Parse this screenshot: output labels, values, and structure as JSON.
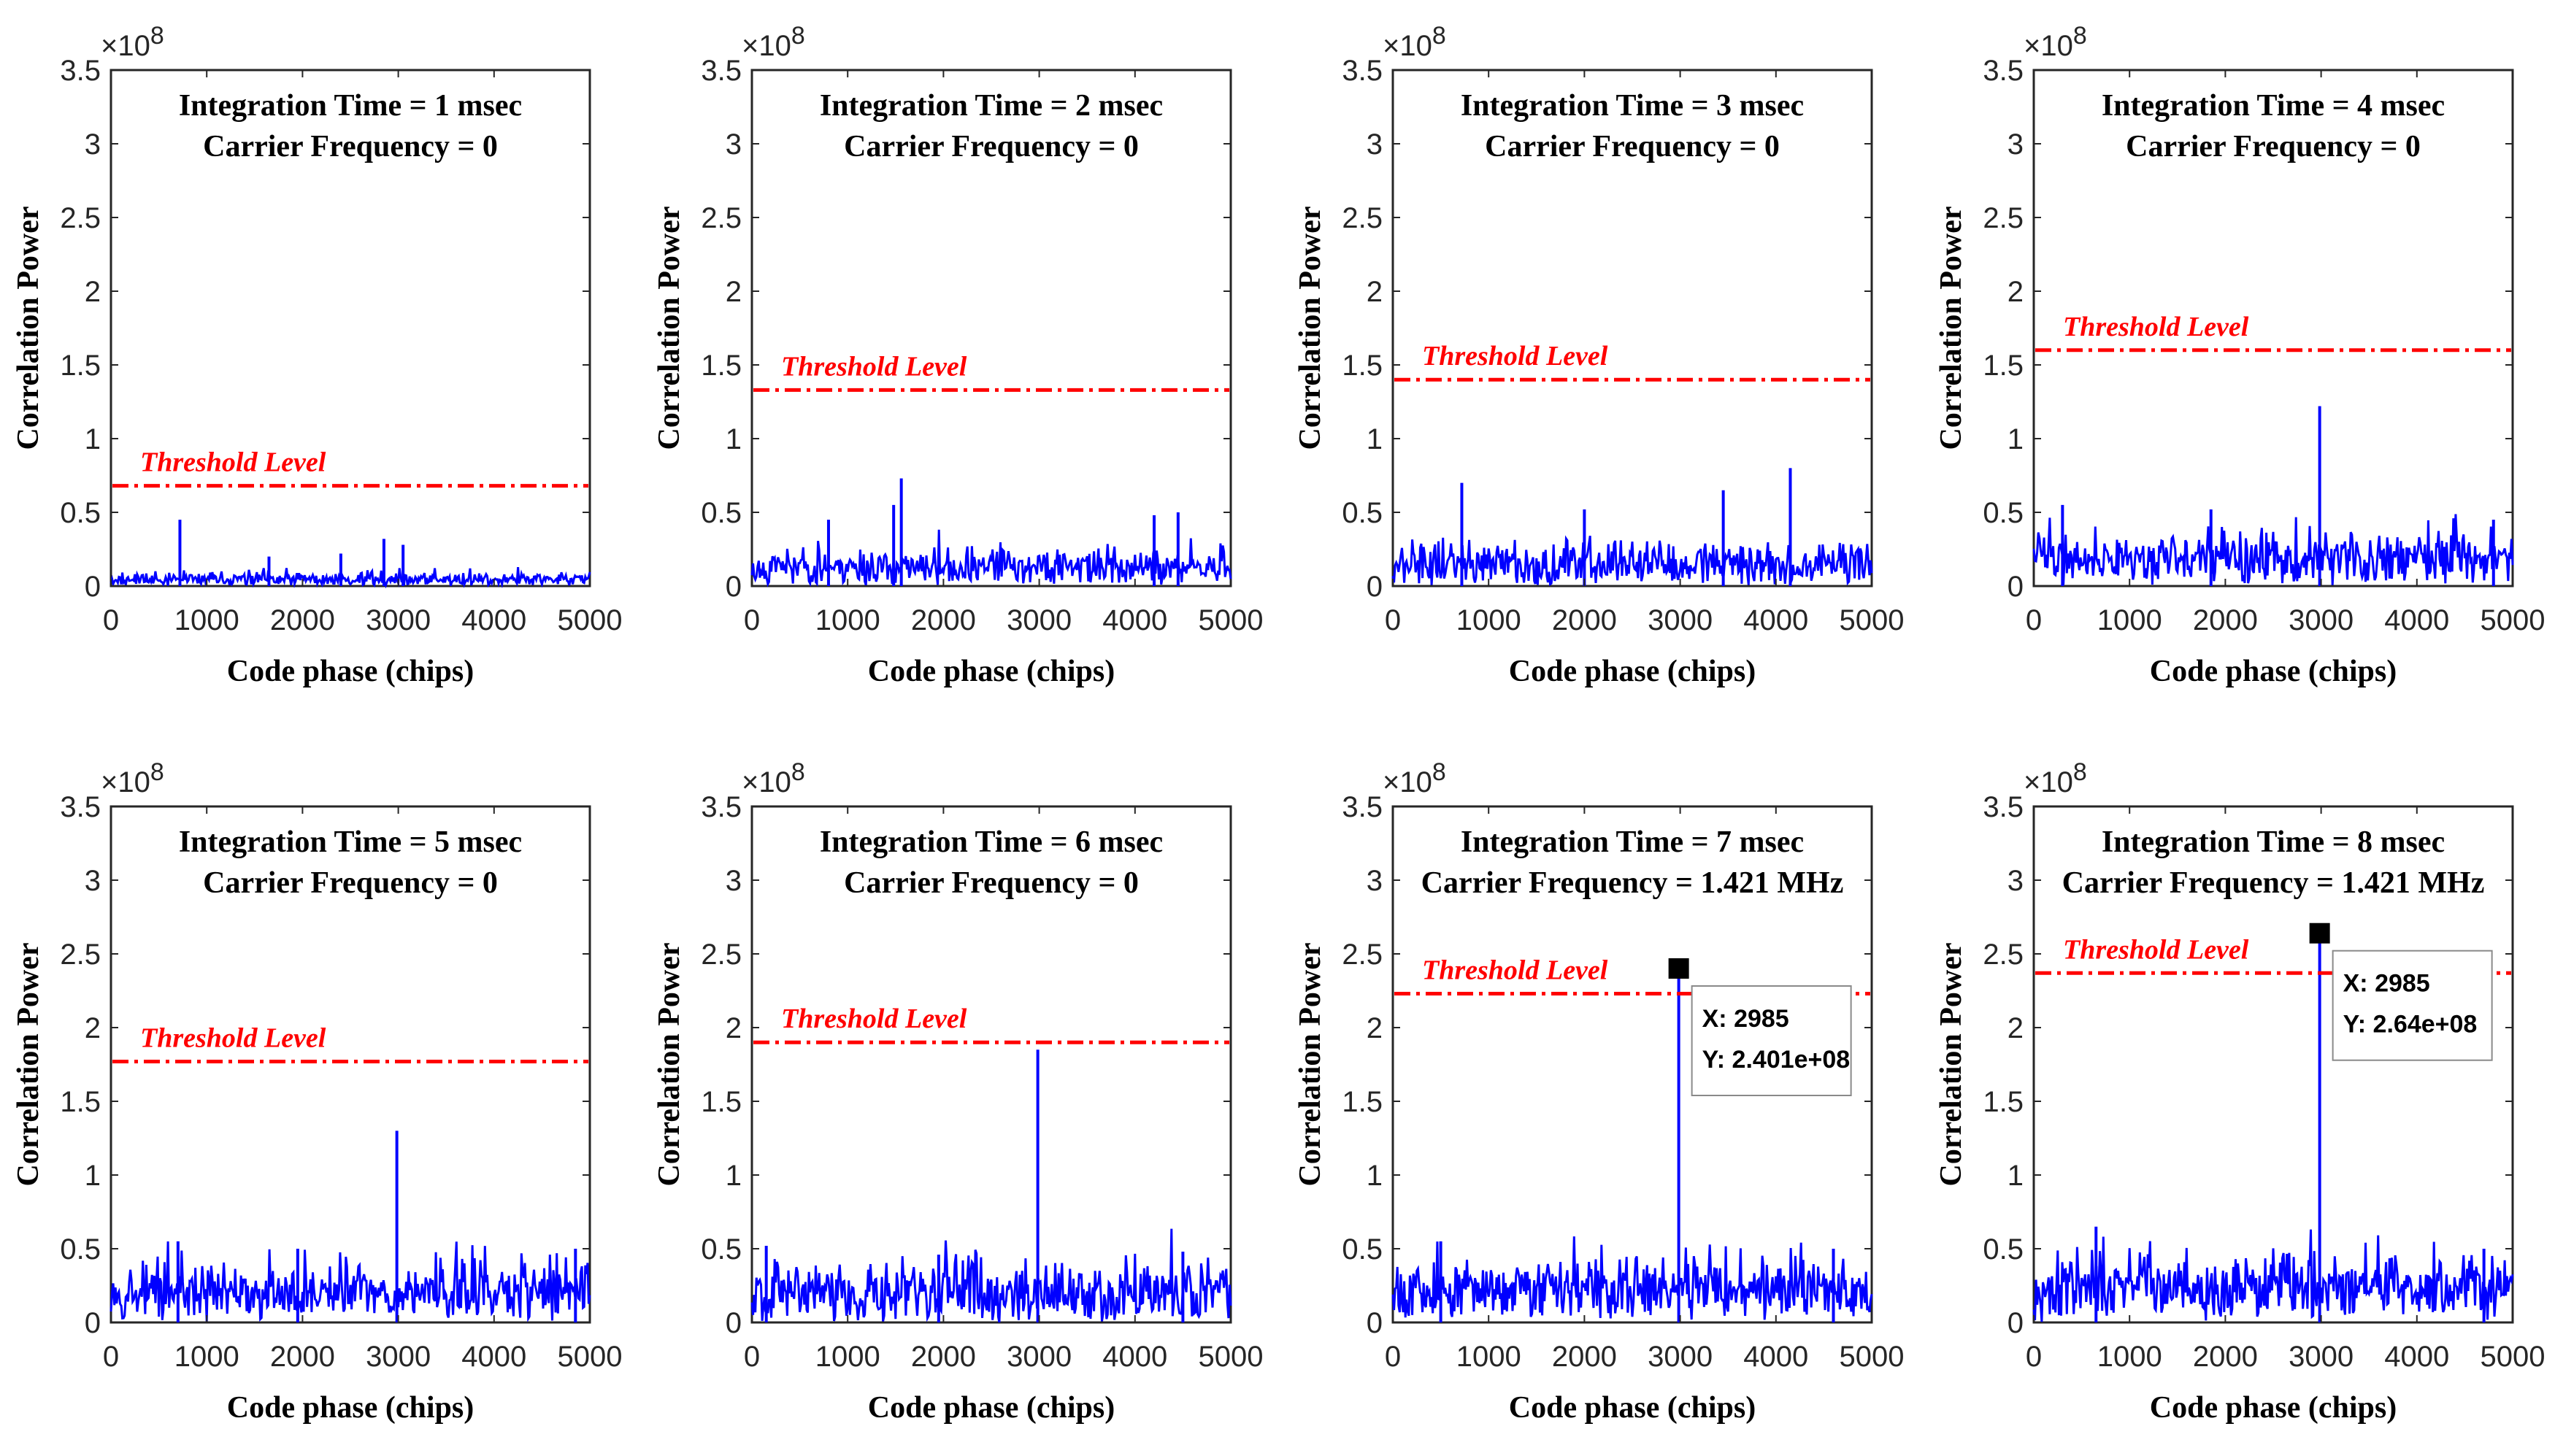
{
  "figure": {
    "description_free": true,
    "colors": {
      "signal": "#0000ff",
      "threshold": "#ff0000",
      "axes": "#262626",
      "marker": "#000000"
    }
  },
  "chart_data": [
    {
      "type": "line",
      "title_line1": "Integration Time = 1 msec",
      "title_line2": "Carrier Frequency = 0",
      "xlabel": "Code phase (chips)",
      "ylabel": "Correlation Power",
      "exponent_label": "×10",
      "exponent_power": "8",
      "xlim": [
        0,
        5000
      ],
      "ylim": [
        0,
        3.5
      ],
      "xticks": [
        "0",
        "1000",
        "2000",
        "3000",
        "4000",
        "5000"
      ],
      "yticks": [
        "0",
        "0.5",
        "1",
        "1.5",
        "2",
        "2.5",
        "3",
        "3.5"
      ],
      "threshold_label": "Threshold Level",
      "threshold": 0.68,
      "noise_level": 0.06,
      "peaks": [
        {
          "x": 720,
          "y": 0.45
        },
        {
          "x": 2850,
          "y": 0.32
        },
        {
          "x": 3050,
          "y": 0.28
        },
        {
          "x": 1650,
          "y": 0.2
        },
        {
          "x": 2400,
          "y": 0.22
        }
      ],
      "seed": 11
    },
    {
      "type": "line",
      "title_line1": "Integration Time = 2 msec",
      "title_line2": "Carrier Frequency = 0",
      "xlabel": "Code phase (chips)",
      "ylabel": "Correlation Power",
      "exponent_label": "×10",
      "exponent_power": "8",
      "xlim": [
        0,
        5000
      ],
      "ylim": [
        0,
        3.5
      ],
      "xticks": [
        "0",
        "1000",
        "2000",
        "3000",
        "4000",
        "5000"
      ],
      "yticks": [
        "0",
        "0.5",
        "1",
        "1.5",
        "2",
        "2.5",
        "3",
        "3.5"
      ],
      "threshold_label": "Threshold Level",
      "threshold": 1.33,
      "noise_level": 0.17,
      "peaks": [
        {
          "x": 1560,
          "y": 0.73
        },
        {
          "x": 1480,
          "y": 0.55
        },
        {
          "x": 4450,
          "y": 0.5
        },
        {
          "x": 4200,
          "y": 0.48
        },
        {
          "x": 800,
          "y": 0.45
        }
      ],
      "seed": 23
    },
    {
      "type": "line",
      "title_line1": "Integration Time = 3 msec",
      "title_line2": "Carrier Frequency = 0",
      "xlabel": "Code phase (chips)",
      "ylabel": "Correlation Power",
      "exponent_label": "×10",
      "exponent_power": "8",
      "xlim": [
        0,
        5000
      ],
      "ylim": [
        0,
        3.5
      ],
      "xticks": [
        "0",
        "1000",
        "2000",
        "3000",
        "4000",
        "5000"
      ],
      "yticks": [
        "0",
        "0.5",
        "1",
        "1.5",
        "2",
        "2.5",
        "3",
        "3.5"
      ],
      "threshold_label": "Threshold Level",
      "threshold": 1.4,
      "noise_level": 0.2,
      "peaks": [
        {
          "x": 720,
          "y": 0.7
        },
        {
          "x": 4150,
          "y": 0.8
        },
        {
          "x": 3450,
          "y": 0.65
        },
        {
          "x": 2000,
          "y": 0.52
        }
      ],
      "seed": 37
    },
    {
      "type": "line",
      "title_line1": "Integration Time = 4 msec",
      "title_line2": "Carrier Frequency = 0",
      "xlabel": "Code phase (chips)",
      "ylabel": "Correlation Power",
      "exponent_label": "×10",
      "exponent_power": "8",
      "xlim": [
        0,
        5000
      ],
      "ylim": [
        0,
        3.5
      ],
      "xticks": [
        "0",
        "1000",
        "2000",
        "3000",
        "4000",
        "5000"
      ],
      "yticks": [
        "0",
        "0.5",
        "1",
        "1.5",
        "2",
        "2.5",
        "3",
        "3.5"
      ],
      "threshold_label": "Threshold Level",
      "threshold": 1.6,
      "noise_level": 0.24,
      "peaks": [
        {
          "x": 2985,
          "y": 1.22
        },
        {
          "x": 300,
          "y": 0.55
        },
        {
          "x": 1850,
          "y": 0.52
        },
        {
          "x": 4800,
          "y": 0.45
        }
      ],
      "seed": 41
    },
    {
      "type": "line",
      "title_line1": "Integration Time = 5 msec",
      "title_line2": "Carrier Frequency = 0",
      "xlabel": "Code phase (chips)",
      "ylabel": "Correlation Power",
      "exponent_label": "×10",
      "exponent_power": "8",
      "xlim": [
        0,
        5000
      ],
      "ylim": [
        0,
        3.5
      ],
      "xticks": [
        "0",
        "1000",
        "2000",
        "3000",
        "4000",
        "5000"
      ],
      "yticks": [
        "0",
        "0.5",
        "1",
        "1.5",
        "2",
        "2.5",
        "3",
        "3.5"
      ],
      "threshold_label": "Threshold Level",
      "threshold": 1.77,
      "noise_level": 0.28,
      "peaks": [
        {
          "x": 2985,
          "y": 1.3
        },
        {
          "x": 700,
          "y": 0.55
        },
        {
          "x": 1950,
          "y": 0.5
        },
        {
          "x": 4850,
          "y": 0.5
        }
      ],
      "seed": 53
    },
    {
      "type": "line",
      "title_line1": "Integration Time = 6 msec",
      "title_line2": "Carrier Frequency = 0",
      "xlabel": "Code phase (chips)",
      "ylabel": "Correlation Power",
      "exponent_label": "×10",
      "exponent_power": "8",
      "xlim": [
        0,
        5000
      ],
      "ylim": [
        0,
        3.5
      ],
      "xticks": [
        "0",
        "1000",
        "2000",
        "3000",
        "4000",
        "5000"
      ],
      "yticks": [
        "0",
        "0.5",
        "1",
        "1.5",
        "2",
        "2.5",
        "3",
        "3.5"
      ],
      "threshold_label": "Threshold Level",
      "threshold": 1.9,
      "noise_level": 0.28,
      "peaks": [
        {
          "x": 2985,
          "y": 1.85
        },
        {
          "x": 150,
          "y": 0.52
        },
        {
          "x": 4500,
          "y": 0.48
        },
        {
          "x": 1950,
          "y": 0.46
        }
      ],
      "seed": 67
    },
    {
      "type": "line",
      "title_line1": "Integration Time = 7 msec",
      "title_line2": "Carrier Frequency = 1.421 MHz",
      "xlabel": "Code phase (chips)",
      "ylabel": "Correlation Power",
      "exponent_label": "×10",
      "exponent_power": "8",
      "xlim": [
        0,
        5000
      ],
      "ylim": [
        0,
        3.5
      ],
      "xticks": [
        "0",
        "1000",
        "2000",
        "3000",
        "4000",
        "5000"
      ],
      "yticks": [
        "0",
        "0.5",
        "1",
        "1.5",
        "2",
        "2.5",
        "3",
        "3.5"
      ],
      "threshold_label": "Threshold Level",
      "threshold": 2.23,
      "noise_level": 0.3,
      "peaks": [
        {
          "x": 2985,
          "y": 2.401
        },
        {
          "x": 500,
          "y": 0.55
        },
        {
          "x": 4600,
          "y": 0.5
        }
      ],
      "seed": 79,
      "datatip": {
        "x": 2985,
        "y": 2.401,
        "line_x": "X: 2985",
        "line_y": "Y: 2.401e+08"
      }
    },
    {
      "type": "line",
      "title_line1": "Integration Time = 8 msec",
      "title_line2": "Carrier Frequency = 1.421 MHz",
      "xlabel": "Code phase (chips)",
      "ylabel": "Correlation Power",
      "exponent_label": "×10",
      "exponent_power": "8",
      "xlim": [
        0,
        5000
      ],
      "ylim": [
        0,
        3.5
      ],
      "xticks": [
        "0",
        "1000",
        "2000",
        "3000",
        "4000",
        "5000"
      ],
      "yticks": [
        "0",
        "0.5",
        "1",
        "1.5",
        "2",
        "2.5",
        "3",
        "3.5"
      ],
      "threshold_label": "Threshold Level",
      "threshold": 2.37,
      "noise_level": 0.3,
      "peaks": [
        {
          "x": 2985,
          "y": 2.64
        },
        {
          "x": 650,
          "y": 0.65
        },
        {
          "x": 4700,
          "y": 0.5
        }
      ],
      "seed": 97,
      "datatip": {
        "x": 2985,
        "y": 2.64,
        "line_x": "X: 2985",
        "line_y": "Y: 2.64e+08"
      }
    }
  ]
}
